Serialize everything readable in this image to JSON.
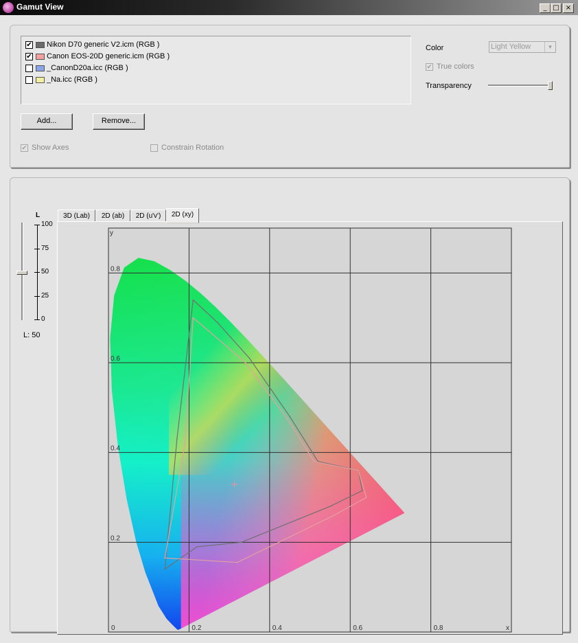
{
  "window": {
    "title": "Gamut View",
    "buttons": {
      "minimize": "_",
      "maximize": "□",
      "close": "×"
    }
  },
  "profiles": {
    "items": [
      {
        "label": "Nikon D70 generic V2.icm (RGB )",
        "checked": true,
        "swatch": "#6b6b6b"
      },
      {
        "label": "Canon EOS-20D generic.icm (RGB )",
        "checked": true,
        "swatch": "#f2a0a0"
      },
      {
        "label": "_CanonD20a.icc (RGB )",
        "checked": false,
        "swatch": "#8aa6e8"
      },
      {
        "label": "_Na.icc (RGB )",
        "checked": false,
        "swatch": "#f2f0a0"
      }
    ],
    "add_label": "Add...",
    "remove_label": "Remove..."
  },
  "options": {
    "show_axes_label": "Show Axes",
    "constrain_rotation_label": "Constrain Rotation",
    "color_label": "Color",
    "color_value": "Light Yellow",
    "true_colors_label": "True colors",
    "transparency_label": "Transparency",
    "transparency_level": 1.0
  },
  "tabs": [
    {
      "label": "3D (Lab)",
      "active": false
    },
    {
      "label": "2D (ab)",
      "active": false
    },
    {
      "label": "2D (u'v')",
      "active": false
    },
    {
      "label": "2D (xy)",
      "active": true
    }
  ],
  "lightness": {
    "axis_label": "L",
    "ticks": [
      "100",
      "75",
      "50",
      "25",
      "0"
    ],
    "value_label": "L: 50",
    "value": 50
  },
  "chart_data": {
    "type": "scatter",
    "xlabel": "x",
    "ylabel": "y",
    "xlim": [
      0,
      1.0
    ],
    "ylim": [
      0,
      0.9
    ],
    "x_ticks": [
      "0",
      "0.2",
      "0.4",
      "0.6",
      "0.8"
    ],
    "y_ticks": [
      "0.2",
      "0.4",
      "0.6",
      "0.8"
    ],
    "grid": true,
    "white_point": {
      "x": 0.3127,
      "y": 0.329
    },
    "series": [
      {
        "color": "#707070",
        "points": [
          [
            0.21,
            0.74
          ],
          [
            0.27,
            0.69
          ],
          [
            0.35,
            0.61
          ],
          [
            0.45,
            0.48
          ],
          [
            0.52,
            0.38
          ],
          [
            0.62,
            0.36
          ],
          [
            0.63,
            0.315
          ],
          [
            0.55,
            0.28
          ],
          [
            0.33,
            0.2
          ],
          [
            0.22,
            0.19
          ],
          [
            0.14,
            0.14
          ],
          [
            0.17,
            0.43
          ],
          [
            0.21,
            0.74
          ]
        ]
      },
      {
        "color": "#e6a0a0",
        "points": [
          [
            0.21,
            0.7
          ],
          [
            0.25,
            0.67
          ],
          [
            0.34,
            0.6
          ],
          [
            0.44,
            0.48
          ],
          [
            0.51,
            0.38
          ],
          [
            0.62,
            0.36
          ],
          [
            0.64,
            0.3
          ],
          [
            0.56,
            0.26
          ],
          [
            0.32,
            0.155
          ],
          [
            0.14,
            0.165
          ],
          [
            0.19,
            0.42
          ],
          [
            0.21,
            0.7
          ]
        ]
      }
    ]
  }
}
